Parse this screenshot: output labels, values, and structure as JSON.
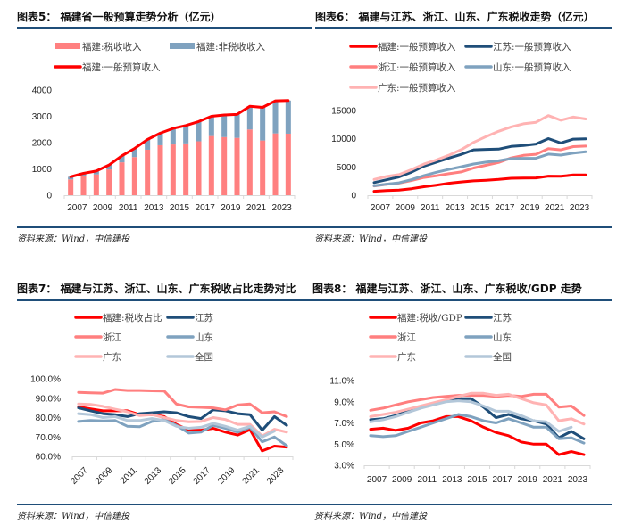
{
  "panels": [
    {
      "title": "图表5：  福建省一般预算走势分析（亿元）",
      "source": "资料来源：Wind，中信建投"
    },
    {
      "title": "图表6：  福建与江苏、浙江、山东、广东税收走势（亿元）",
      "source": "资料来源：Wind，中信建投"
    },
    {
      "title": "图表7：  福建与江苏、浙江、山东、广东税收占比走势对比",
      "source": "资料来源：Wind，中信建投"
    },
    {
      "title": "图表8：  福建与江苏、浙江、山东、广东税收/GDP 走势",
      "source": "资料来源：Wind，中信建投"
    }
  ],
  "chart_data": [
    {
      "type": "bar",
      "title": "福建省一般预算走势分析（亿元）",
      "x": [
        2007,
        2008,
        2009,
        2010,
        2011,
        2012,
        2013,
        2014,
        2015,
        2016,
        2017,
        2018,
        2019,
        2020,
        2021,
        2022,
        2023,
        2024
      ],
      "x_tick_labels": [
        "2007",
        "2009",
        "2011",
        "2013",
        "2015",
        "2017",
        "2019",
        "2021",
        "2023"
      ],
      "y_ticks": [
        0,
        1000,
        2000,
        3000,
        4000
      ],
      "y_tick_labels": [
        "0",
        "1000",
        "2000",
        "3000",
        "4000"
      ],
      "ylim": [
        0,
        4000
      ],
      "legend": [
        "福建:税收收入",
        "福建:非税收收入",
        "福建:一般预算收入"
      ],
      "legend_position": "top",
      "stacked": true,
      "series": [
        {
          "name": "福建:税收收入",
          "kind": "bar",
          "color": "#ff8080",
          "values": [
            600,
            720,
            790,
            980,
            1250,
            1450,
            1730,
            1900,
            1930,
            1970,
            2050,
            2250,
            2210,
            2180,
            2500,
            2080,
            2350,
            2340
          ]
        },
        {
          "name": "福建:非税收收入",
          "kind": "bar",
          "color": "#7fa2bf",
          "values": [
            100,
            110,
            130,
            170,
            250,
            330,
            390,
            460,
            610,
            680,
            750,
            750,
            840,
            890,
            880,
            1260,
            1240,
            1260
          ]
        },
        {
          "name": "福建:一般预算收入",
          "kind": "line",
          "color": "#ff0000",
          "values": [
            700,
            830,
            920,
            1150,
            1500,
            1780,
            2120,
            2360,
            2540,
            2650,
            2800,
            3000,
            3050,
            3070,
            3380,
            3340,
            3590,
            3600
          ]
        }
      ]
    },
    {
      "type": "line",
      "title": "福建与江苏、浙江、山东、广东税收走势（亿元）",
      "x": [
        2007,
        2008,
        2009,
        2010,
        2011,
        2012,
        2013,
        2014,
        2015,
        2016,
        2017,
        2018,
        2019,
        2020,
        2021,
        2022,
        2023,
        2024
      ],
      "x_tick_labels": [
        "2007",
        "2009",
        "2011",
        "2013",
        "2015",
        "2017",
        "2019",
        "2021",
        "2023"
      ],
      "y_ticks": [
        0,
        5000,
        10000,
        15000
      ],
      "y_tick_labels": [
        "0",
        "5000",
        "10000",
        "15000"
      ],
      "ylim": [
        0,
        15000
      ],
      "legend_position": "top",
      "series": [
        {
          "name": "福建:一般预算收入",
          "color": "#ff0000",
          "values": [
            700,
            830,
            920,
            1150,
            1500,
            1780,
            2120,
            2360,
            2540,
            2650,
            2800,
            3000,
            3050,
            3070,
            3380,
            3340,
            3590,
            3600
          ]
        },
        {
          "name": "江苏:一般预算收入",
          "color": "#1f4e79",
          "values": [
            2240,
            2730,
            3230,
            4080,
            5150,
            5860,
            6570,
            7230,
            8030,
            8120,
            8170,
            8630,
            8800,
            9060,
            10020,
            9260,
            9930,
            10000
          ]
        },
        {
          "name": "浙江:一般预算收入",
          "color": "#ff7f7f",
          "values": [
            1650,
            1930,
            2140,
            2610,
            3150,
            3440,
            3800,
            4120,
            4810,
            5300,
            5800,
            6600,
            7050,
            7250,
            8260,
            8040,
            8600,
            8700
          ]
        },
        {
          "name": "山东:一般预算收入",
          "color": "#7fa2bf",
          "values": [
            1680,
            1960,
            2200,
            2750,
            3460,
            4060,
            4560,
            5030,
            5520,
            5860,
            6100,
            6480,
            6530,
            6560,
            7280,
            7100,
            7460,
            7700
          ]
        },
        {
          "name": "广东:一般预算收入",
          "color": "#ffb3b3",
          "values": [
            2790,
            3310,
            3650,
            4520,
            5510,
            6230,
            7080,
            8070,
            9370,
            10390,
            11320,
            12100,
            12650,
            12920,
            14100,
            13280,
            13850,
            13500
          ]
        }
      ]
    },
    {
      "type": "line",
      "title": "福建与江苏、浙江、山东、广东税收占比走势对比",
      "x": [
        2007,
        2008,
        2009,
        2010,
        2011,
        2012,
        2013,
        2014,
        2015,
        2016,
        2017,
        2018,
        2019,
        2020,
        2021,
        2022,
        2023,
        2024
      ],
      "x_tick_labels": [
        "2007",
        "2009",
        "2011",
        "2013",
        "2015",
        "2017",
        "2019",
        "2021",
        "2023"
      ],
      "y_ticks": [
        60,
        70,
        80,
        90,
        100
      ],
      "y_tick_labels": [
        "60.0%",
        "70.0%",
        "80.0%",
        "90.0%",
        "100.0%"
      ],
      "ylim": [
        60,
        100
      ],
      "legend_position": "top",
      "series": [
        {
          "name": "福建:税收占比",
          "color": "#ff0000",
          "values": [
            85.5,
            84.5,
            83.5,
            83.5,
            83.5,
            81.5,
            81.5,
            80.5,
            76.5,
            73.5,
            73.5,
            74.5,
            72.5,
            71.0,
            73.8,
            62.8,
            65.3,
            64.8
          ]
        },
        {
          "name": "江苏",
          "color": "#1f4e79",
          "values": [
            85.0,
            83.5,
            82.0,
            81.5,
            80.5,
            82.0,
            82.5,
            83.0,
            82.5,
            80.5,
            79.5,
            84.0,
            83.5,
            82.0,
            81.5,
            73.5,
            80.5,
            76.0
          ]
        },
        {
          "name": "浙江",
          "color": "#ff7f7f",
          "values": [
            93.0,
            92.8,
            92.6,
            94.5,
            94.0,
            94.0,
            93.8,
            93.7,
            87.0,
            85.5,
            85.3,
            85.0,
            84.0,
            86.5,
            87.0,
            82.5,
            83.0,
            80.5
          ]
        },
        {
          "name": "山东",
          "color": "#7fa2bf",
          "values": [
            78.0,
            78.5,
            78.3,
            78.5,
            75.5,
            75.3,
            78.0,
            79.0,
            76.0,
            72.0,
            72.5,
            76.0,
            74.5,
            72.5,
            75.0,
            67.5,
            70.0,
            65.5
          ]
        },
        {
          "name": "广东",
          "color": "#ffb3b3",
          "values": [
            87.0,
            86.8,
            85.8,
            84.3,
            83.0,
            81.0,
            81.5,
            80.0,
            78.5,
            77.8,
            78.0,
            80.0,
            79.0,
            76.5,
            76.5,
            70.5,
            74.0,
            72.5
          ]
        },
        {
          "name": "全国",
          "color": "#b3c7d9",
          "values": [
            82.0,
            81.5,
            80.0,
            80.5,
            78.5,
            78.5,
            79.5,
            78.5,
            75.5,
            74.5,
            75.0,
            77.0,
            75.5,
            73.5,
            75.5,
            70.0,
            73.0,
            null
          ]
        }
      ]
    },
    {
      "type": "line",
      "title": "福建与江苏、浙江、山东、广东税收/GDP 走势",
      "x": [
        2007,
        2008,
        2009,
        2010,
        2011,
        2012,
        2013,
        2014,
        2015,
        2016,
        2017,
        2018,
        2019,
        2020,
        2021,
        2022,
        2023,
        2024
      ],
      "x_tick_labels": [
        "2007",
        "2009",
        "2011",
        "2013",
        "2015",
        "2017",
        "2019",
        "2021",
        "2023"
      ],
      "y_ticks": [
        3,
        5,
        7,
        9,
        11
      ],
      "y_tick_labels": [
        "3.0%",
        "5.0%",
        "7.0%",
        "9.0%",
        "11.0%"
      ],
      "ylim": [
        3,
        11
      ],
      "legend_position": "top",
      "series": [
        {
          "name": "福建:税收/GDP",
          "color": "#ff0000",
          "values": [
            6.4,
            6.5,
            6.3,
            6.5,
            7.0,
            7.2,
            7.6,
            7.6,
            7.2,
            6.6,
            6.1,
            5.8,
            5.2,
            5.0,
            5.0,
            4.0,
            4.3,
            4.0
          ]
        },
        {
          "name": "江苏",
          "color": "#1f4e79",
          "values": [
            7.3,
            7.4,
            7.7,
            8.1,
            8.5,
            8.8,
            9.1,
            9.3,
            9.3,
            8.5,
            7.5,
            7.8,
            7.4,
            7.2,
            6.9,
            5.6,
            6.2,
            5.5
          ]
        },
        {
          "name": "浙江",
          "color": "#ff7f7f",
          "values": [
            8.2,
            8.4,
            8.7,
            9.0,
            9.2,
            9.4,
            9.5,
            9.6,
            9.6,
            9.6,
            9.5,
            9.6,
            9.5,
            9.7,
            9.7,
            8.5,
            8.6,
            7.7
          ]
        },
        {
          "name": "山东",
          "color": "#7fa2bf",
          "values": [
            5.8,
            5.7,
            5.8,
            6.2,
            6.6,
            7.0,
            7.4,
            7.8,
            7.6,
            7.2,
            7.0,
            7.4,
            7.0,
            6.6,
            6.6,
            5.5,
            5.6,
            5.1
          ]
        },
        {
          "name": "广东",
          "color": "#ffb3b3",
          "values": [
            7.6,
            7.8,
            8.0,
            8.3,
            8.6,
            8.9,
            9.2,
            9.5,
            9.8,
            9.8,
            9.6,
            9.7,
            9.3,
            8.9,
            8.7,
            7.2,
            7.4,
            6.9
          ]
        },
        {
          "name": "全国",
          "color": "#b3c7d9",
          "values": [
            7.1,
            7.3,
            7.6,
            8.0,
            8.4,
            8.7,
            9.0,
            9.1,
            9.0,
            8.6,
            8.1,
            8.1,
            7.7,
            7.2,
            7.1,
            6.2,
            6.6,
            null
          ]
        }
      ]
    }
  ]
}
